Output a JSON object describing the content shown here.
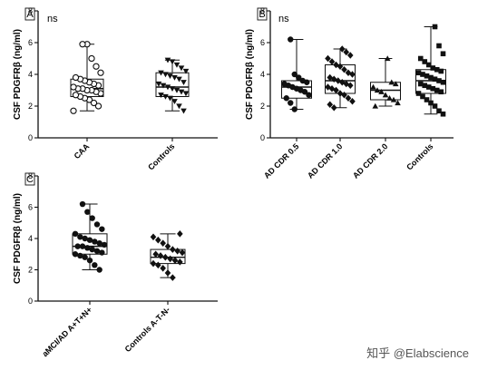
{
  "watermark": "知乎 @Elabscience",
  "chart_data": [
    {
      "panel": "A",
      "type": "box",
      "ylabel": "CSF PDGFRβ (ng/ml)",
      "ylim": [
        0,
        8
      ],
      "yticks": [
        0,
        2,
        4,
        6,
        8
      ],
      "annotation": "ns",
      "groups": [
        {
          "category": "CAA",
          "marker": "open-circle",
          "box": {
            "min": 1.7,
            "q1": 2.6,
            "median": 3.1,
            "q3": 3.7,
            "max": 5.9
          },
          "points": [
            1.7,
            2.0,
            2.2,
            2.4,
            2.5,
            2.6,
            2.7,
            2.8,
            2.9,
            3.0,
            3.0,
            3.1,
            3.1,
            3.2,
            3.3,
            3.4,
            3.5,
            3.6,
            3.7,
            3.8,
            4.1,
            4.5,
            5.0,
            5.9,
            5.9
          ]
        },
        {
          "category": "Controls",
          "marker": "triangle-down",
          "box": {
            "min": 1.7,
            "q1": 2.6,
            "median": 3.2,
            "q3": 4.1,
            "max": 4.9
          },
          "points": [
            1.7,
            2.0,
            2.3,
            2.5,
            2.6,
            2.7,
            2.8,
            2.9,
            3.0,
            3.1,
            3.2,
            3.3,
            3.4,
            3.5,
            3.7,
            3.8,
            3.9,
            4.0,
            4.1,
            4.2,
            4.4,
            4.6,
            4.8,
            4.9
          ]
        }
      ]
    },
    {
      "panel": "B",
      "type": "box",
      "ylabel": "CSF PDGFRβ (ng/ml)",
      "ylim": [
        0,
        8
      ],
      "yticks": [
        0,
        2,
        4,
        6,
        8
      ],
      "annotation": "ns",
      "groups": [
        {
          "category": "AD CDR 0.5",
          "marker": "circle",
          "box": {
            "min": 1.8,
            "q1": 2.5,
            "median": 3.2,
            "q3": 3.6,
            "max": 6.2
          },
          "points": [
            1.8,
            2.2,
            2.5,
            2.7,
            2.9,
            3.0,
            3.1,
            3.2,
            3.3,
            3.4,
            3.5,
            3.6,
            3.8,
            4.0,
            6.2
          ]
        },
        {
          "category": "AD CDR 1.0",
          "marker": "diamond",
          "box": {
            "min": 1.9,
            "q1": 2.8,
            "median": 3.6,
            "q3": 4.6,
            "max": 5.6
          },
          "points": [
            1.9,
            2.1,
            2.3,
            2.5,
            2.7,
            2.8,
            3.0,
            3.1,
            3.2,
            3.3,
            3.4,
            3.5,
            3.6,
            3.7,
            3.8,
            4.0,
            4.1,
            4.3,
            4.5,
            4.6,
            4.8,
            5.0,
            5.2,
            5.4,
            5.6
          ]
        },
        {
          "category": "AD CDR 2.0",
          "marker": "triangle-up",
          "box": {
            "min": 2.0,
            "q1": 2.4,
            "median": 3.0,
            "q3": 3.5,
            "max": 5.0
          },
          "points": [
            2.0,
            2.2,
            2.4,
            2.5,
            2.7,
            2.9,
            3.0,
            3.2,
            3.4,
            3.5,
            5.0
          ]
        },
        {
          "category": "Controls",
          "marker": "square",
          "box": {
            "min": 1.5,
            "q1": 2.8,
            "median": 3.6,
            "q3": 4.3,
            "max": 7.0
          },
          "points": [
            1.5,
            1.7,
            2.0,
            2.2,
            2.4,
            2.6,
            2.8,
            2.9,
            3.0,
            3.1,
            3.2,
            3.3,
            3.4,
            3.5,
            3.6,
            3.7,
            3.8,
            3.9,
            4.0,
            4.1,
            4.2,
            4.3,
            4.4,
            4.6,
            4.8,
            5.0,
            5.3,
            5.8,
            7.0
          ]
        }
      ]
    },
    {
      "panel": "C",
      "type": "box",
      "ylabel": "CSF PDGFRβ (ng/ml)",
      "ylim": [
        0,
        8
      ],
      "yticks": [
        0,
        2,
        4,
        6,
        8
      ],
      "annotation": "",
      "groups": [
        {
          "category": "aMCI/AD A+T+N+",
          "marker": "circle",
          "box": {
            "min": 2.0,
            "q1": 3.0,
            "median": 3.5,
            "q3": 4.3,
            "max": 6.2
          },
          "points": [
            2.0,
            2.3,
            2.6,
            2.8,
            2.9,
            3.0,
            3.1,
            3.2,
            3.3,
            3.4,
            3.5,
            3.5,
            3.6,
            3.7,
            3.8,
            3.9,
            4.0,
            4.1,
            4.3,
            4.6,
            4.9,
            5.3,
            5.7,
            6.2
          ]
        },
        {
          "category": "Controls A-T-N-",
          "marker": "diamond",
          "box": {
            "min": 1.5,
            "q1": 2.4,
            "median": 2.8,
            "q3": 3.3,
            "max": 4.3
          },
          "points": [
            1.5,
            1.8,
            2.1,
            2.3,
            2.4,
            2.5,
            2.6,
            2.7,
            2.8,
            2.9,
            3.0,
            3.1,
            3.2,
            3.3,
            3.5,
            3.7,
            3.9,
            4.1,
            4.3
          ]
        }
      ]
    }
  ]
}
